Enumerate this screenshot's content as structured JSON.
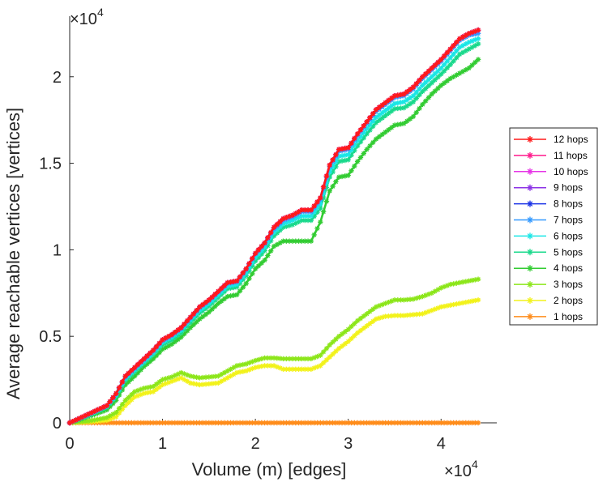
{
  "chart_data": {
    "type": "line",
    "xlabel": "Volume (m) [edges]",
    "ylabel": "Average reachable vertices [vertices]",
    "x_multiplier": "×10",
    "x_exponent": "4",
    "y_multiplier": "×10",
    "y_exponent": "4",
    "xlim": [
      0,
      46000
    ],
    "ylim": [
      0,
      23500
    ],
    "xticks": [
      0,
      10000,
      20000,
      30000,
      40000
    ],
    "xtick_labels": [
      "0",
      "1",
      "2",
      "3",
      "4"
    ],
    "yticks": [
      0,
      5000,
      10000,
      15000,
      20000
    ],
    "ytick_labels": [
      "0",
      "0.5",
      "1",
      "1.5",
      "2"
    ],
    "grid": false,
    "legend_position": "right",
    "x": [
      0,
      2000,
      4000,
      5000,
      6000,
      7000,
      8000,
      9000,
      10000,
      11000,
      12000,
      13000,
      14000,
      15000,
      16000,
      17000,
      18000,
      19000,
      20000,
      21000,
      22000,
      23000,
      24000,
      25000,
      26000,
      27000,
      28000,
      29000,
      30000,
      31000,
      32000,
      33000,
      34000,
      35000,
      36000,
      37000,
      38000,
      39000,
      40000,
      41000,
      42000,
      43000,
      44000
    ],
    "series": [
      {
        "name": "12 hops",
        "color": "#ff1a1a",
        "values": [
          0,
          500,
          1000,
          1700,
          2700,
          3200,
          3700,
          4200,
          4800,
          5100,
          5500,
          6100,
          6700,
          7100,
          7600,
          8100,
          8200,
          8900,
          9800,
          10400,
          11300,
          11800,
          12000,
          12300,
          12300,
          13000,
          14900,
          15800,
          15900,
          16700,
          17400,
          18100,
          18500,
          18900,
          19000,
          19400,
          20000,
          20500,
          21000,
          21600,
          22200,
          22500,
          22700
        ]
      },
      {
        "name": "11 hops",
        "color": "#ff1a8c",
        "values": [
          0,
          500,
          1000,
          1700,
          2700,
          3200,
          3700,
          4200,
          4800,
          5100,
          5500,
          6100,
          6700,
          7100,
          7600,
          8100,
          8200,
          8900,
          9800,
          10400,
          11300,
          11800,
          12000,
          12300,
          12300,
          13000,
          14900,
          15800,
          15900,
          16700,
          17400,
          18100,
          18500,
          18900,
          19000,
          19400,
          20000,
          20500,
          21000,
          21600,
          22200,
          22500,
          22700
        ]
      },
      {
        "name": "10 hops",
        "color": "#e633e6",
        "values": [
          0,
          500,
          1000,
          1700,
          2700,
          3200,
          3700,
          4200,
          4800,
          5100,
          5500,
          6100,
          6700,
          7100,
          7600,
          8100,
          8200,
          8900,
          9800,
          10400,
          11300,
          11800,
          12000,
          12300,
          12300,
          13000,
          14900,
          15800,
          15900,
          16700,
          17400,
          18100,
          18500,
          18900,
          19000,
          19400,
          20000,
          20500,
          21000,
          21600,
          22200,
          22500,
          22700
        ]
      },
      {
        "name": "9 hops",
        "color": "#8c33e6",
        "values": [
          0,
          500,
          1000,
          1700,
          2700,
          3200,
          3700,
          4200,
          4800,
          5100,
          5500,
          6100,
          6700,
          7100,
          7600,
          8100,
          8200,
          8900,
          9800,
          10400,
          11300,
          11800,
          12000,
          12300,
          12300,
          13000,
          14900,
          15800,
          15900,
          16700,
          17400,
          18100,
          18500,
          18900,
          19000,
          19400,
          20000,
          20500,
          21000,
          21600,
          22200,
          22500,
          22700
        ]
      },
      {
        "name": "8 hops",
        "color": "#1a33e6",
        "values": [
          0,
          500,
          1000,
          1700,
          2700,
          3200,
          3700,
          4200,
          4800,
          5100,
          5500,
          6100,
          6700,
          7100,
          7600,
          8100,
          8200,
          8900,
          9800,
          10400,
          11300,
          11800,
          12000,
          12300,
          12300,
          13000,
          14900,
          15800,
          15900,
          16700,
          17400,
          18100,
          18500,
          18900,
          19000,
          19400,
          20000,
          20500,
          21000,
          21600,
          22200,
          22500,
          22700
        ]
      },
      {
        "name": "7 hops",
        "color": "#3399ff",
        "values": [
          0,
          480,
          980,
          1650,
          2650,
          3150,
          3650,
          4150,
          4750,
          5050,
          5450,
          6050,
          6650,
          7050,
          7550,
          8050,
          8150,
          8850,
          9750,
          10350,
          11200,
          11700,
          11900,
          12200,
          12200,
          12900,
          14800,
          15700,
          15800,
          16600,
          17300,
          18000,
          18400,
          18800,
          18900,
          19300,
          19900,
          20400,
          20900,
          21500,
          22100,
          22400,
          22500
        ]
      },
      {
        "name": "6 hops",
        "color": "#1ae6e6",
        "values": [
          0,
          450,
          950,
          1600,
          2550,
          3050,
          3550,
          4050,
          4650,
          4950,
          5350,
          5950,
          6500,
          6900,
          7400,
          7900,
          8000,
          8650,
          9550,
          10150,
          11000,
          11500,
          11700,
          11950,
          11950,
          12650,
          14500,
          15400,
          15500,
          16300,
          17000,
          17650,
          18050,
          18450,
          18550,
          18900,
          19500,
          20000,
          20500,
          21100,
          21700,
          22000,
          22200
        ]
      },
      {
        "name": "5 hops",
        "color": "#1ad98c",
        "values": [
          0,
          420,
          900,
          1500,
          2450,
          2950,
          3450,
          3950,
          4500,
          4800,
          5200,
          5800,
          6350,
          6750,
          7250,
          7750,
          7850,
          8500,
          9350,
          9950,
          10800,
          11300,
          11450,
          11700,
          11700,
          12400,
          14200,
          15100,
          15200,
          16000,
          16700,
          17350,
          17750,
          18150,
          18200,
          18550,
          19150,
          19650,
          20150,
          20700,
          21300,
          21600,
          21900
        ]
      },
      {
        "name": "4 hops",
        "color": "#33cc33",
        "values": [
          0,
          350,
          750,
          1300,
          2200,
          2700,
          3250,
          3700,
          4250,
          4550,
          4950,
          5500,
          6000,
          6400,
          6900,
          7300,
          7400,
          8050,
          8900,
          9400,
          10200,
          10500,
          10500,
          10500,
          10500,
          11600,
          13400,
          14200,
          14300,
          15100,
          15800,
          16400,
          16800,
          17200,
          17300,
          17700,
          18400,
          19000,
          19500,
          19900,
          20200,
          20500,
          21000
        ]
      },
      {
        "name": "3 hops",
        "color": "#8ce61a",
        "values": [
          0,
          100,
          300,
          600,
          1300,
          1800,
          2000,
          2100,
          2500,
          2650,
          2900,
          2700,
          2600,
          2650,
          2700,
          3000,
          3300,
          3400,
          3600,
          3750,
          3750,
          3700,
          3700,
          3700,
          3700,
          3900,
          4500,
          5000,
          5400,
          5900,
          6300,
          6700,
          6900,
          7100,
          7100,
          7150,
          7300,
          7500,
          7800,
          8000,
          8100,
          8200,
          8300
        ]
      },
      {
        "name": "2 hops",
        "color": "#f2f21a",
        "values": [
          0,
          50,
          150,
          350,
          1000,
          1500,
          1700,
          1800,
          2200,
          2400,
          2600,
          2300,
          2200,
          2250,
          2300,
          2600,
          2900,
          3000,
          3200,
          3300,
          3300,
          3100,
          3100,
          3100,
          3100,
          3300,
          3800,
          4300,
          4700,
          5200,
          5600,
          6000,
          6150,
          6200,
          6200,
          6250,
          6300,
          6500,
          6700,
          6800,
          6900,
          7000,
          7100
        ]
      },
      {
        "name": "1 hops",
        "color": "#ff8c1a",
        "values": [
          0,
          0,
          0,
          0,
          0,
          0,
          0,
          0,
          0,
          0,
          0,
          0,
          0,
          0,
          0,
          0,
          0,
          0,
          0,
          0,
          0,
          0,
          0,
          0,
          0,
          0,
          0,
          0,
          0,
          0,
          0,
          0,
          0,
          0,
          0,
          0,
          0,
          0,
          0,
          0,
          0,
          0,
          0
        ]
      }
    ]
  }
}
